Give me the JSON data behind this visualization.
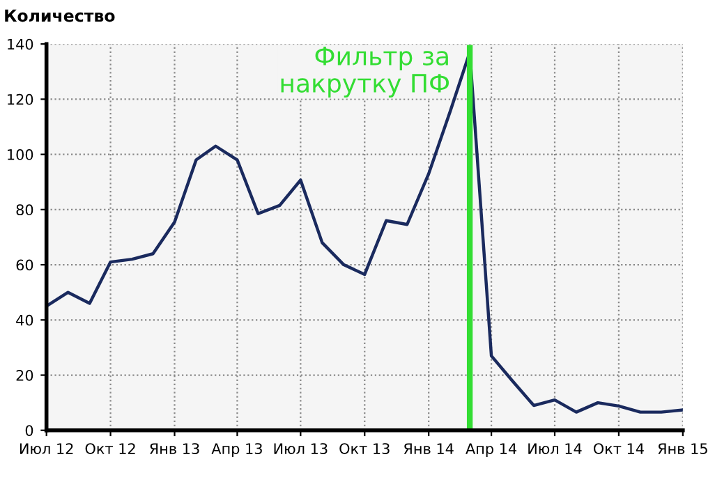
{
  "chart_data": {
    "type": "line",
    "ylabel": "Количество",
    "x": [
      "2012-07",
      "2012-08",
      "2012-09",
      "2012-10",
      "2012-11",
      "2012-12",
      "2013-01",
      "2013-02",
      "2013-03",
      "2013-04",
      "2013-05",
      "2013-06",
      "2013-07",
      "2013-08",
      "2013-09",
      "2013-10",
      "2013-11",
      "2013-12",
      "2014-01",
      "2014-02",
      "2014-03",
      "2014-04",
      "2014-05",
      "2014-06",
      "2014-07",
      "2014-08",
      "2014-09",
      "2014-10",
      "2014-11",
      "2014-12",
      "2015-01"
    ],
    "series": [
      {
        "color": "#1a2a5e",
        "values": [
          45,
          50,
          46,
          61,
          62,
          64,
          75.5,
          98,
          103,
          98,
          78.5,
          81.5,
          90.7,
          68,
          60,
          56.5,
          76,
          74.6,
          93,
          115.7,
          137,
          27,
          18,
          9,
          11,
          6.6,
          10,
          8.8,
          6.6,
          6.6,
          7.4
        ]
      }
    ],
    "xlim": [
      "2012-07",
      "2015-01"
    ],
    "xticks": [
      {
        "value": "2012-07",
        "label": "Июл 12"
      },
      {
        "value": "2012-10",
        "label": "Окт 12"
      },
      {
        "value": "2013-01",
        "label": "Янв 13"
      },
      {
        "value": "2013-04",
        "label": "Апр 13"
      },
      {
        "value": "2013-07",
        "label": "Июл 13"
      },
      {
        "value": "2013-10",
        "label": "Окт 13"
      },
      {
        "value": "2014-01",
        "label": "Янв 14"
      },
      {
        "value": "2014-04",
        "label": "Апр 14"
      },
      {
        "value": "2014-07",
        "label": "Июл 14"
      },
      {
        "value": "2014-10",
        "label": "Окт 14"
      },
      {
        "value": "2015-01",
        "label": "Янв 15"
      }
    ],
    "ylim": [
      0,
      140
    ],
    "yticks": [
      0,
      20,
      40,
      60,
      80,
      100,
      120,
      140
    ],
    "ref_lines": [
      {
        "axis": "x",
        "value": "2014-03",
        "label": "Фильтр за\nнакрутку ПФ",
        "color": "#33dd33"
      }
    ],
    "grid": true,
    "marker": "none",
    "line_style": "solid"
  }
}
